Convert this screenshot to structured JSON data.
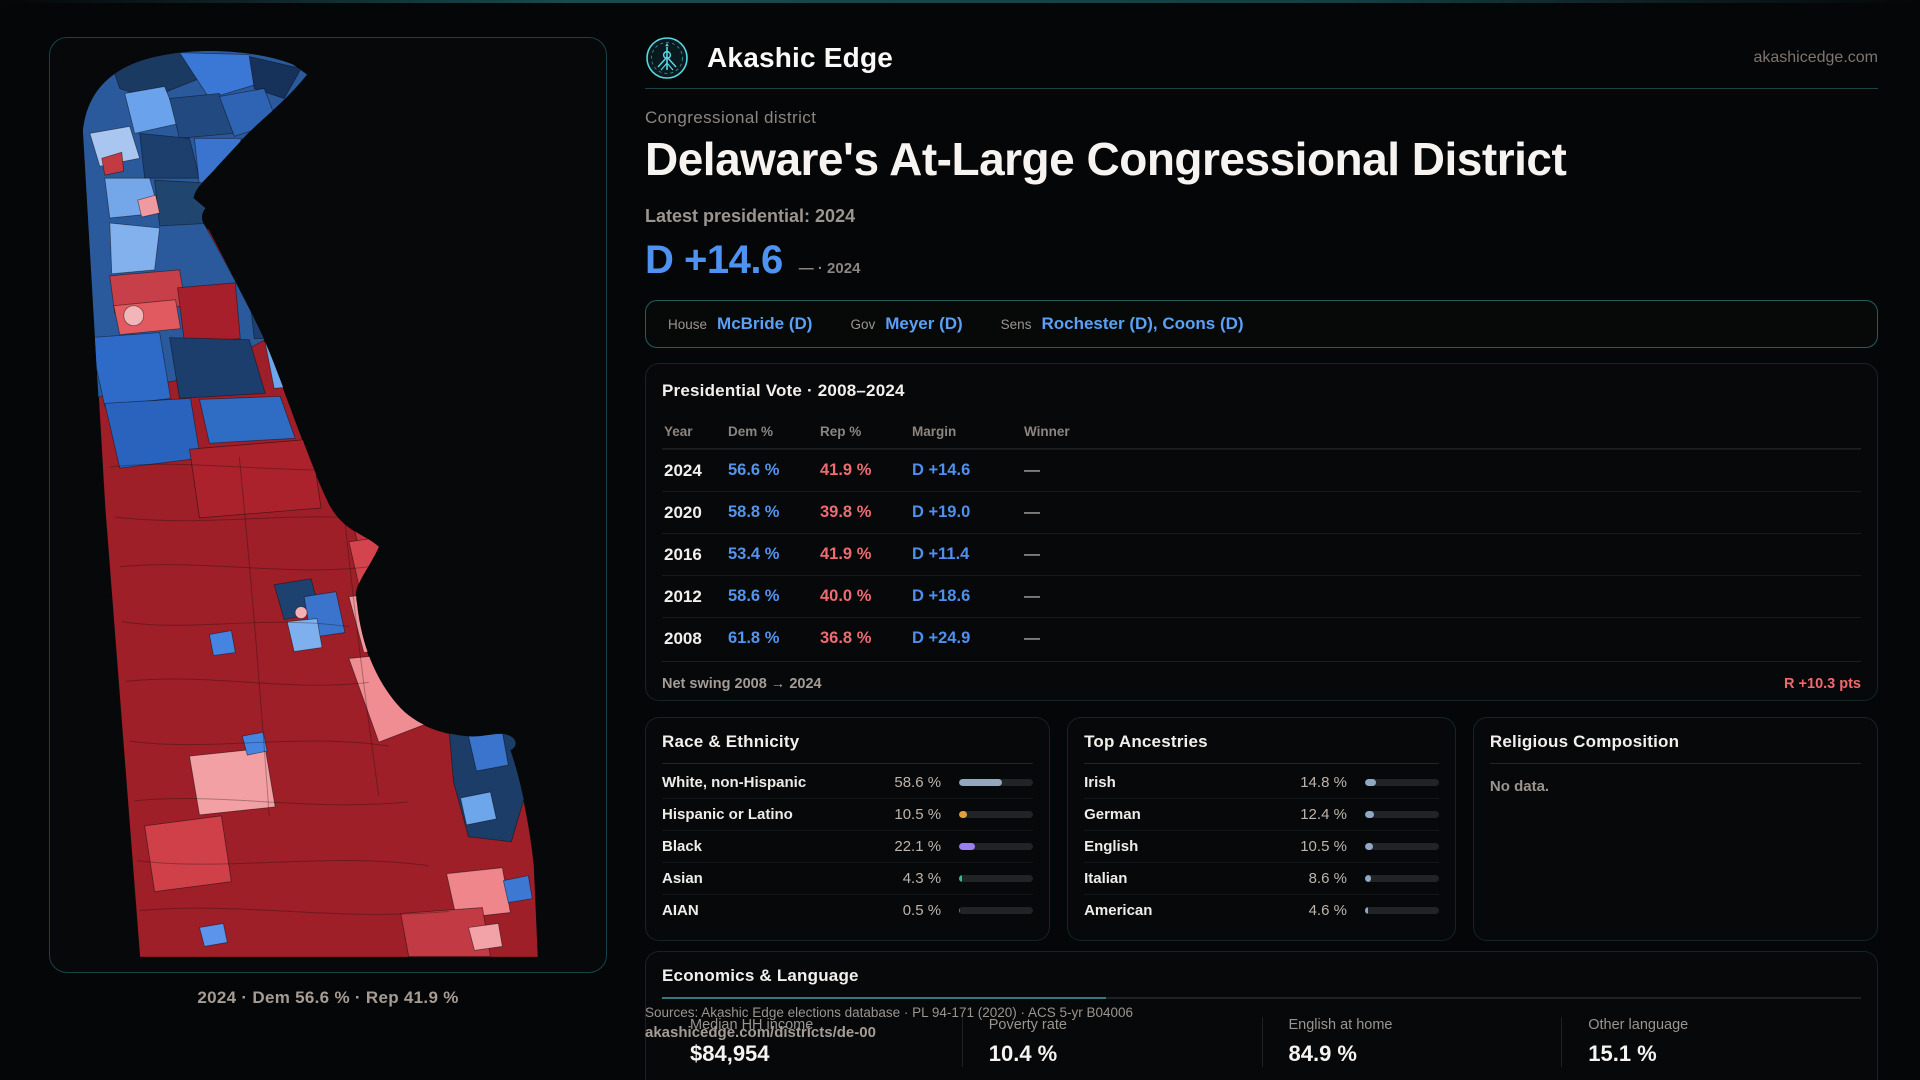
{
  "colors": {
    "accent_teal": "#49c4c8",
    "dem_blue": "#5493ee",
    "rep_red": "#ee6b70",
    "net_swing_red": "#f0696e",
    "map_dem_dark": "#1c3d68",
    "map_rep_dark": "#9e1f28"
  },
  "brand": {
    "name": "Akashic Edge",
    "domain": "akashicedge.com",
    "logo_icon": "akashic-edge-emblem"
  },
  "page": {
    "kicker": "Congressional district",
    "title": "Delaware's At-Large Congressional District",
    "subtitle": "Latest presidential: 2024",
    "headline_margin": "D +14.6",
    "headline_note": "— · 2024"
  },
  "officials": [
    {
      "role": "House",
      "name": "McBride (D)"
    },
    {
      "role": "Gov",
      "name": "Meyer (D)"
    },
    {
      "role": "Sens",
      "name": "Rochester (D), Coons (D)"
    }
  ],
  "presidential_vote": {
    "title": "Presidential Vote · 2008–2024",
    "columns": {
      "year": "Year",
      "dem": "Dem %",
      "rep": "Rep %",
      "margin": "Margin",
      "winner": "Winner"
    },
    "rows": [
      {
        "year": "2024",
        "dem": "56.6 %",
        "rep": "41.9 %",
        "margin": "D +14.6",
        "winner": "—"
      },
      {
        "year": "2020",
        "dem": "58.8 %",
        "rep": "39.8 %",
        "margin": "D +19.0",
        "winner": "—"
      },
      {
        "year": "2016",
        "dem": "53.4 %",
        "rep": "41.9 %",
        "margin": "D +11.4",
        "winner": "—"
      },
      {
        "year": "2012",
        "dem": "58.6 %",
        "rep": "40.0 %",
        "margin": "D +18.6",
        "winner": "—"
      },
      {
        "year": "2008",
        "dem": "61.8 %",
        "rep": "36.8 %",
        "margin": "D +24.9",
        "winner": "—"
      }
    ],
    "net_swing_label": "Net swing 2008 → 2024",
    "net_swing_value": "R +10.3 pts"
  },
  "race_ethnicity": {
    "title": "Race & Ethnicity",
    "rows": [
      {
        "label": "White, non-Hispanic",
        "value": "58.6 %",
        "pct": 58.6,
        "color": "#93a7c0"
      },
      {
        "label": "Hispanic or Latino",
        "value": "10.5 %",
        "pct": 10.5,
        "color": "#e0a23e"
      },
      {
        "label": "Black",
        "value": "22.1 %",
        "pct": 22.1,
        "color": "#9a7ff0"
      },
      {
        "label": "Asian",
        "value": "4.3 %",
        "pct": 4.3,
        "color": "#31c08b"
      },
      {
        "label": "AIAN",
        "value": "0.5 %",
        "pct": 0.5,
        "color": "#6b7280"
      }
    ]
  },
  "ancestries": {
    "title": "Top Ancestries",
    "rows": [
      {
        "label": "Irish",
        "value": "14.8 %",
        "pct": 14.8,
        "color": "#8fa8c6"
      },
      {
        "label": "German",
        "value": "12.4 %",
        "pct": 12.4,
        "color": "#8fa8c6"
      },
      {
        "label": "English",
        "value": "10.5 %",
        "pct": 10.5,
        "color": "#8fa8c6"
      },
      {
        "label": "Italian",
        "value": "8.6 %",
        "pct": 8.6,
        "color": "#8fa8c6"
      },
      {
        "label": "American",
        "value": "4.6 %",
        "pct": 4.6,
        "color": "#8fa8c6"
      }
    ]
  },
  "religion": {
    "title": "Religious Composition",
    "empty": "No data."
  },
  "economics": {
    "title": "Economics & Language",
    "stats": [
      {
        "label": "Median HH income",
        "value": "$84,954"
      },
      {
        "label": "Poverty rate",
        "value": "10.4 %"
      },
      {
        "label": "English at home",
        "value": "84.9 %"
      },
      {
        "label": "Other language",
        "value": "15.1 %"
      }
    ]
  },
  "map": {
    "caption": "2024 · Dem 56.6 % · Rep 41.9 %"
  },
  "sources": {
    "line1": "Sources: Akashic Edge elections database · PL 94-171 (2020) · ACS 5-yr B04006",
    "line2": "akashicedge.com/districts/de-00"
  }
}
